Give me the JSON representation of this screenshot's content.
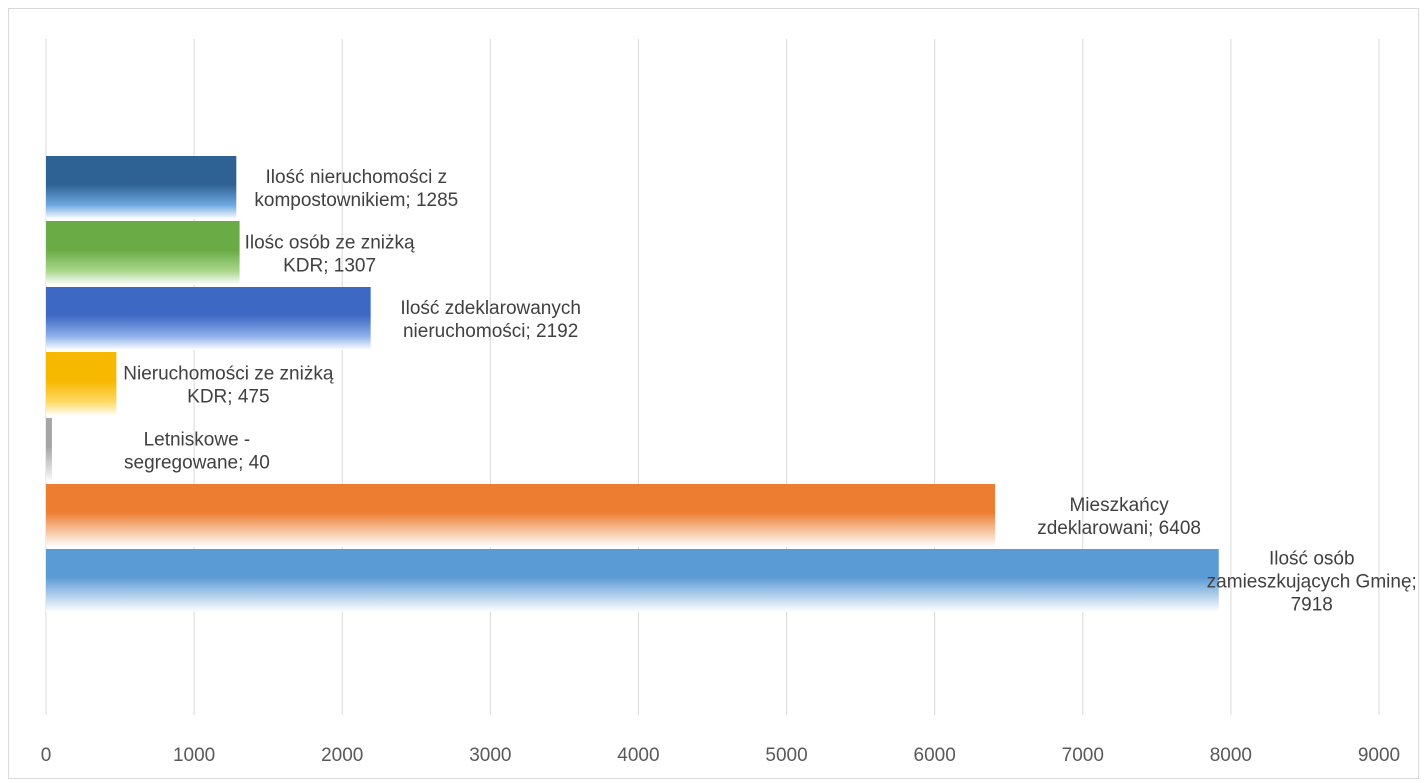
{
  "chart_data": {
    "type": "bar",
    "orientation": "horizontal",
    "title": "",
    "xlabel": "",
    "ylabel": "",
    "xlim": [
      0,
      9000
    ],
    "x_ticks": [
      0,
      1000,
      2000,
      3000,
      4000,
      5000,
      6000,
      7000,
      8000,
      9000
    ],
    "grid": "vertical",
    "legend": "none",
    "bars": [
      {
        "label_lines": [
          "Ilość nieruchomości z",
          "kompostownikiem; 1285"
        ],
        "value": 1285,
        "color": "#2e6294",
        "color_light": "#6fa8e0"
      },
      {
        "label_lines": [
          "Ilośc osób ze zniżką",
          "KDR; 1307"
        ],
        "value": 1307,
        "color": "#6aab46",
        "color_light": "#a9d68c"
      },
      {
        "label_lines": [
          "Ilość zdeklarowanych",
          "nieruchomości; 2192"
        ],
        "value": 2192,
        "color": "#3d68c4",
        "color_light": "#8fb0ea"
      },
      {
        "label_lines": [
          "Nieruchomości ze zniżką",
          "KDR; 475"
        ],
        "value": 475,
        "color": "#f6b800",
        "color_light": "#ffd966"
      },
      {
        "label_lines": [
          "Letniskowe -",
          "segregowane; 40"
        ],
        "value": 40,
        "color": "#a5a5a5",
        "color_light": "#d9d9d9"
      },
      {
        "label_lines": [
          "Mieszkańcy",
          "zdeklarowani; 6408"
        ],
        "value": 6408,
        "color": "#ed7d31",
        "color_light": "#f8cbad"
      },
      {
        "label_lines": [
          "Ilość osób",
          "zamieszkujących Gminę;",
          "7918"
        ],
        "value": 7918,
        "color": "#5b9bd5",
        "color_light": "#bdd7ee"
      }
    ]
  }
}
